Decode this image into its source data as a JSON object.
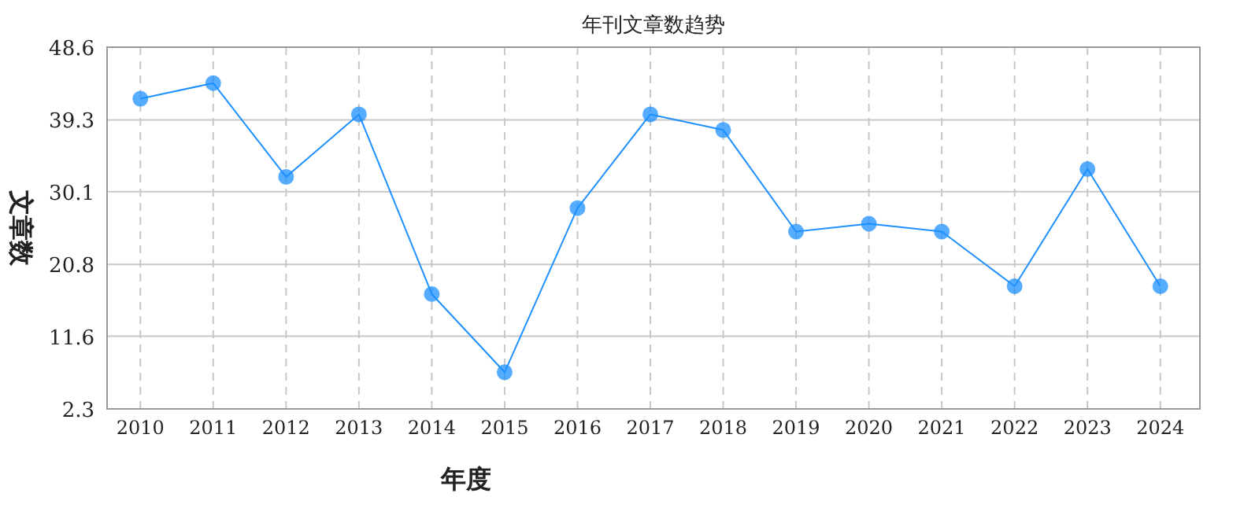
{
  "chart_data": {
    "type": "line",
    "title": "年刊文章数趋势",
    "xlabel": "年度",
    "ylabel": "文章数",
    "categories": [
      "2010",
      "2011",
      "2012",
      "2013",
      "2014",
      "2015",
      "2016",
      "2017",
      "2018",
      "2019",
      "2020",
      "2021",
      "2022",
      "2023",
      "2024"
    ],
    "series": [
      {
        "color": "#1e90ff",
        "values": [
          42,
          44,
          32,
          40,
          17,
          7,
          28,
          40,
          38,
          25,
          26,
          25,
          18,
          33,
          18
        ]
      }
    ],
    "ylim": [
      2.3,
      48.6
    ],
    "yticks": [
      2.3,
      11.6,
      20.8,
      30.1,
      39.3,
      48.6
    ],
    "grid": true,
    "marker": "circle",
    "line_style": "solid"
  }
}
